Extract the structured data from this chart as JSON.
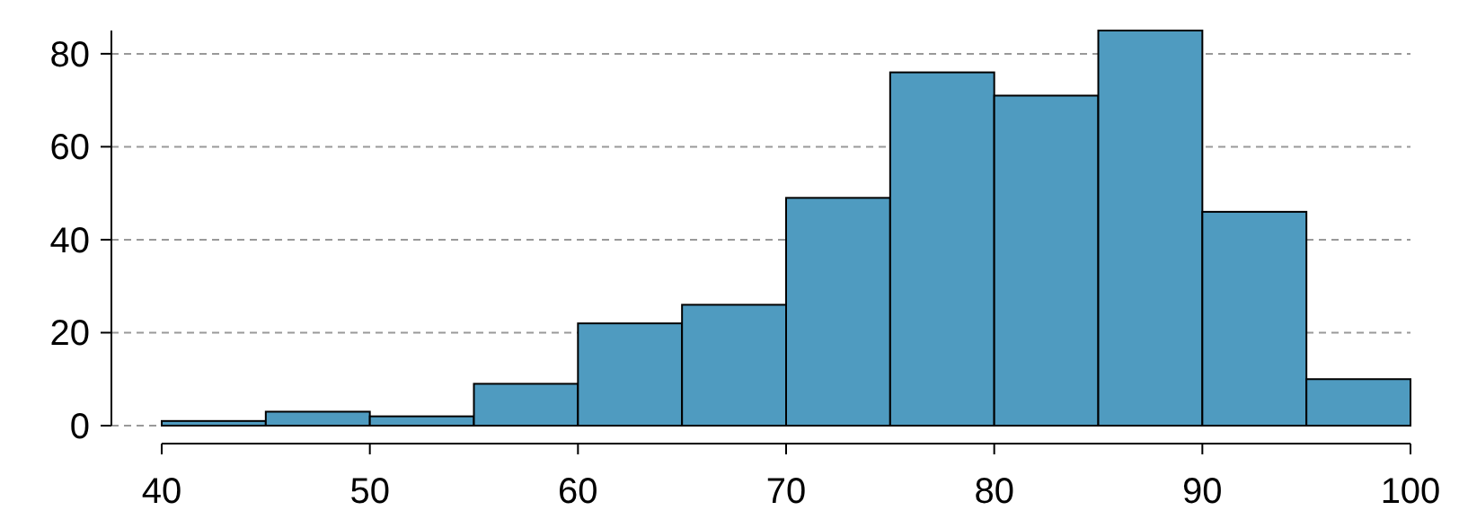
{
  "chart_data": {
    "type": "histogram",
    "bins": [
      40,
      45,
      50,
      55,
      60,
      65,
      70,
      75,
      80,
      85,
      90,
      95,
      100
    ],
    "values": [
      1,
      3,
      2,
      9,
      22,
      26,
      49,
      76,
      71,
      85,
      46,
      10
    ],
    "color": "#4f9bc0",
    "xlim": [
      40,
      100
    ],
    "xticks": [
      40,
      50,
      60,
      70,
      80,
      90,
      100
    ],
    "ylim": [
      0,
      85
    ],
    "yticks": [
      0,
      20,
      40,
      60,
      80
    ],
    "grid": "y"
  }
}
